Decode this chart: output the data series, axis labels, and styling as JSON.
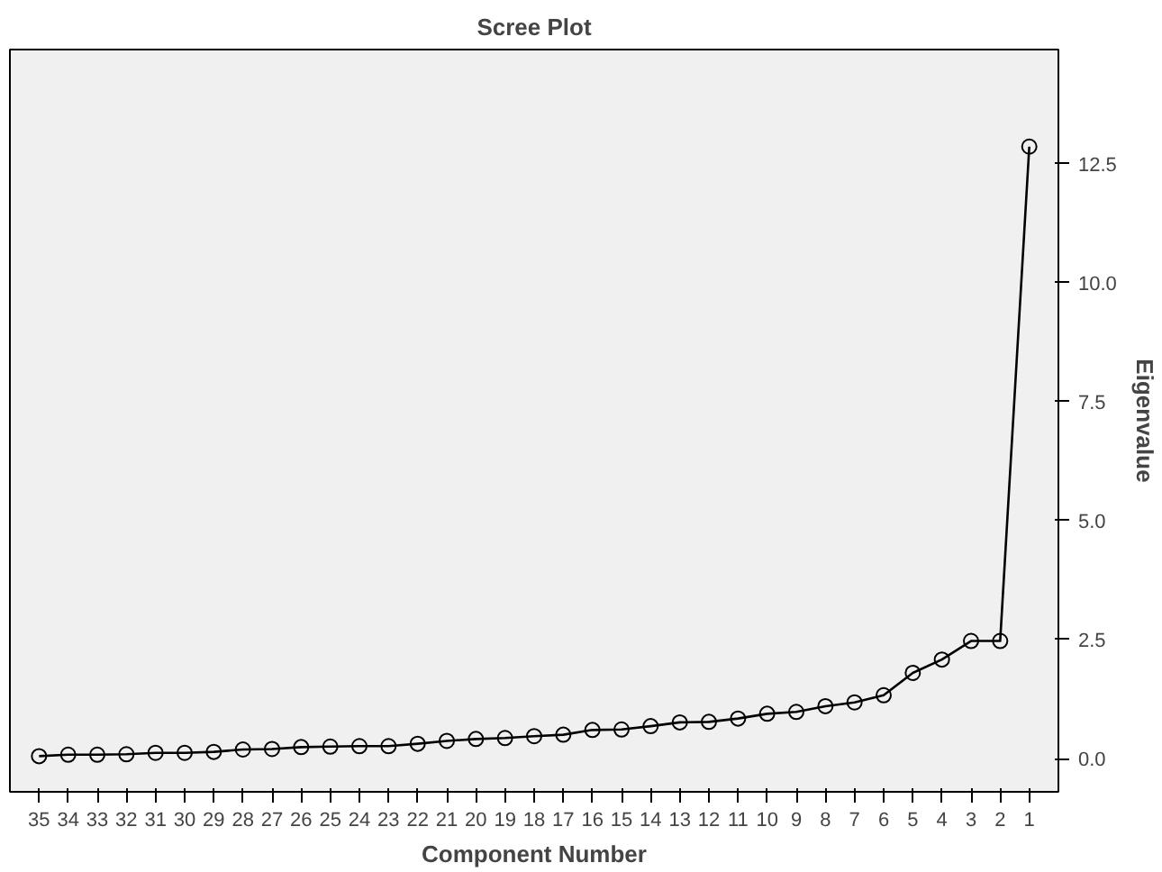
{
  "chart_data": {
    "type": "line",
    "title": "Scree Plot",
    "xlabel": "Component Number",
    "ylabel": "Eigenvalue",
    "categories": [
      "35",
      "34",
      "33",
      "32",
      "31",
      "30",
      "29",
      "28",
      "27",
      "26",
      "25",
      "24",
      "23",
      "22",
      "21",
      "20",
      "19",
      "18",
      "17",
      "16",
      "15",
      "14",
      "13",
      "12",
      "11",
      "10",
      "9",
      "8",
      "7",
      "6",
      "5",
      "4",
      "3",
      "2",
      "1"
    ],
    "series": [
      {
        "color": "#000000",
        "values": [
          0.05,
          0.08,
          0.08,
          0.09,
          0.12,
          0.12,
          0.14,
          0.19,
          0.2,
          0.24,
          0.25,
          0.26,
          0.26,
          0.31,
          0.37,
          0.41,
          0.43,
          0.47,
          0.5,
          0.6,
          0.61,
          0.68,
          0.76,
          0.77,
          0.84,
          0.94,
          0.98,
          1.1,
          1.18,
          1.33,
          1.8,
          2.08,
          2.47,
          2.47,
          12.86
        ]
      }
    ],
    "ylim": [
      -0.7,
      14.9
    ],
    "yticks": [
      {
        "value": 0,
        "label": "0.0"
      },
      {
        "value": 2.5,
        "label": "2.5"
      },
      {
        "value": 5,
        "label": "5.0"
      },
      {
        "value": 7.5,
        "label": "7.5"
      },
      {
        "value": 10,
        "label": "10.0"
      },
      {
        "value": 12.5,
        "label": "12.5"
      }
    ],
    "grid": false,
    "marker": "circle",
    "line_style": "solid"
  }
}
